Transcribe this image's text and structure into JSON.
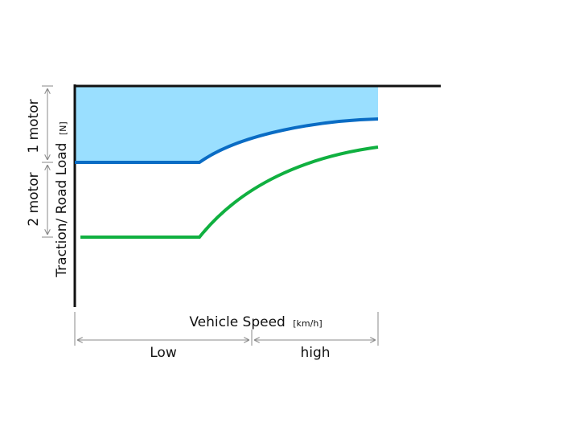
{
  "axes": {
    "ylabel": "Traction/ Road Load",
    "ylabel_unit": "[N]",
    "xlabel": "Vehicle Speed",
    "xlabel_unit": "[km/h]"
  },
  "regions": {
    "one_motor": "1 motor",
    "two_motor": "2 motor",
    "low": "Low",
    "high": "high"
  },
  "colors": {
    "fill": "#9adfff",
    "blue_curve": "#0a6cc4",
    "green_curve": "#10b040",
    "axis": "#111111",
    "dimension": "#888888"
  }
}
